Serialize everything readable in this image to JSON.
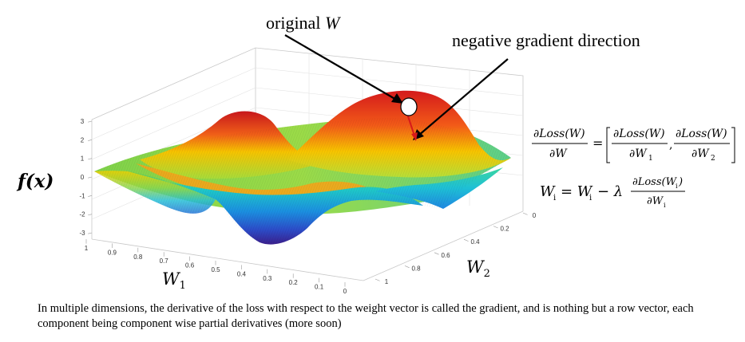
{
  "annotations": {
    "original_prefix": "original ",
    "original_var": "W",
    "negative_gradient": "negative gradient direction"
  },
  "axes": {
    "y_label": "f(x)",
    "w1_label": "W",
    "w1_sub": "1",
    "w2_label": "W",
    "w2_sub": "2",
    "z_ticks": [
      "3",
      "2",
      "1",
      "0",
      "-1",
      "-2",
      "-3"
    ],
    "w1_ticks": [
      "1",
      "0.9",
      "0.8",
      "0.7",
      "0.6",
      "0.5",
      "0.4",
      "0.3",
      "0.2",
      "0.1",
      "0"
    ],
    "w2_ticks": [
      "0",
      "0.2",
      "0.4",
      "0.6",
      "0.8",
      "1"
    ]
  },
  "equations": {
    "eq1_lhs_num": "∂Loss(W)",
    "eq1_lhs_den": "∂W",
    "eq1_rhs_num1": "∂Loss(W)",
    "eq1_rhs_den1": "∂W",
    "eq1_rhs_den1_sub": "1",
    "eq1_rhs_num2": "∂Loss(W)",
    "eq1_rhs_den2": "∂W",
    "eq1_rhs_den2_sub": "2",
    "eq2_lhs": "W",
    "eq2_lhs_sub": "i",
    "eq2_mid": "= W",
    "eq2_mid_sub": "i",
    "eq2_minus": "− λ",
    "eq2_num": "∂Loss(W",
    "eq2_num_sub": "i",
    "eq2_num_close": ")",
    "eq2_den": "∂W",
    "eq2_den_sub": "i"
  },
  "caption": "In multiple dimensions, the derivative of the loss with respect to the weight vector is called the gradient, and is nothing but a row vector, each component being component wise partial derivatives  (more soon)",
  "colors": {
    "peak": "#e8221c",
    "high": "#f5b800",
    "mid": "#7fd24a",
    "low": "#1fa0e0",
    "trough": "#3a2a9a",
    "arrow": "#d61a1a"
  }
}
